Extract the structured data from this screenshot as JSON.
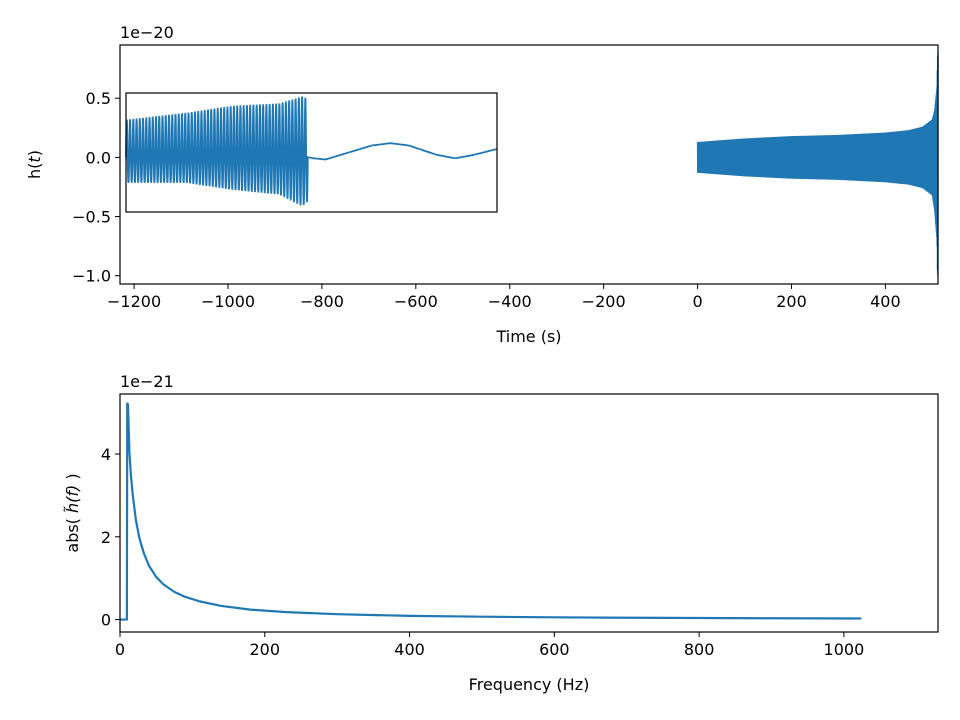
{
  "chart_data": [
    {
      "type": "line",
      "xlabel": "Time (s)",
      "ylabel_prefix": "h(",
      "ylabel_var": "t",
      "ylabel_suffix": ")",
      "y_offset_label": "1e−20",
      "xlim": [
        -1230,
        512
      ],
      "ylim": [
        -1.07,
        0.95
      ],
      "x_ticks": [
        {
          "value": -1200,
          "label": "−1200"
        },
        {
          "value": -1000,
          "label": "−1000"
        },
        {
          "value": -800,
          "label": "−800"
        },
        {
          "value": -600,
          "label": "−600"
        },
        {
          "value": -400,
          "label": "−400"
        },
        {
          "value": -200,
          "label": "−200"
        },
        {
          "value": 0,
          "label": "0"
        },
        {
          "value": 200,
          "label": "200"
        },
        {
          "value": 400,
          "label": "400"
        }
      ],
      "y_ticks": [
        {
          "value": 0.5,
          "label": "0.5"
        },
        {
          "value": 0.0,
          "label": "0.0"
        },
        {
          "value": -0.5,
          "label": "−0.5"
        },
        {
          "value": -1.0,
          "label": "−1.0"
        }
      ],
      "series_color": "#1f77b4",
      "series": [
        {
          "x": [
            0,
            100,
            200,
            300,
            400,
            450,
            480,
            500,
            505,
            510,
            511,
            512
          ],
          "upper": [
            0.13,
            0.16,
            0.18,
            0.19,
            0.21,
            0.23,
            0.26,
            0.32,
            0.4,
            0.6,
            0.85,
            0.88
          ],
          "lower": [
            -0.13,
            -0.16,
            -0.18,
            -0.19,
            -0.21,
            -0.23,
            -0.26,
            -0.32,
            -0.45,
            -0.7,
            -0.98,
            -1.0
          ]
        }
      ],
      "inset": {
        "border_color": "#000000",
        "time_range": [
          -1230,
          -430
        ],
        "value_range": [
          -0.47,
          0.55
        ],
        "merger_time": -838,
        "ringdown_end": -825,
        "oscillation_cycles": 56,
        "envelope": [
          {
            "t": -1230,
            "upper": 0.32,
            "lower": -0.22
          },
          {
            "t": -1100,
            "upper": 0.38,
            "lower": -0.22
          },
          {
            "t": -1000,
            "upper": 0.44,
            "lower": -0.28
          },
          {
            "t": -900,
            "upper": 0.46,
            "lower": -0.32
          },
          {
            "t": -850,
            "upper": 0.52,
            "lower": -0.42
          },
          {
            "t": -838,
            "upper": 0.5,
            "lower": -0.38
          }
        ],
        "tail": [
          {
            "t": -825,
            "v": -0.01
          },
          {
            "t": -800,
            "v": -0.02
          },
          {
            "t": -750,
            "v": 0.04
          },
          {
            "t": -700,
            "v": 0.1
          },
          {
            "t": -660,
            "v": 0.12
          },
          {
            "t": -620,
            "v": 0.1
          },
          {
            "t": -560,
            "v": 0.02
          },
          {
            "t": -520,
            "v": -0.01
          },
          {
            "t": -480,
            "v": 0.02
          },
          {
            "t": -430,
            "v": 0.07
          }
        ]
      }
    },
    {
      "type": "line",
      "xlabel": "Frequency (Hz)",
      "ylabel_prefix": "abs( ",
      "ylabel_var": "h̃(f)",
      "ylabel_suffix": " )",
      "y_offset_label": "1e−21",
      "xlim": [
        0,
        1130
      ],
      "ylim": [
        -0.3,
        5.45
      ],
      "x_ticks": [
        {
          "value": 0,
          "label": "0"
        },
        {
          "value": 200,
          "label": "200"
        },
        {
          "value": 400,
          "label": "400"
        },
        {
          "value": 600,
          "label": "600"
        },
        {
          "value": 800,
          "label": "800"
        },
        {
          "value": 1000,
          "label": "1000"
        }
      ],
      "y_ticks": [
        {
          "value": 0,
          "label": "0"
        },
        {
          "value": 2,
          "label": "2"
        },
        {
          "value": 4,
          "label": "4"
        }
      ],
      "series_color": "#1f77b4",
      "series": [
        {
          "x": [
            0,
            9.5,
            10,
            11,
            13,
            15,
            18,
            22,
            27,
            33,
            40,
            50,
            60,
            75,
            90,
            110,
            140,
            180,
            230,
            300,
            400,
            500,
            600,
            700,
            800,
            900,
            1024
          ],
          "y": [
            0,
            0,
            5.22,
            5.2,
            4.05,
            3.5,
            2.95,
            2.4,
            1.95,
            1.6,
            1.3,
            1.03,
            0.85,
            0.67,
            0.55,
            0.44,
            0.33,
            0.24,
            0.18,
            0.13,
            0.09,
            0.07,
            0.055,
            0.045,
            0.038,
            0.032,
            0.026
          ]
        }
      ]
    }
  ]
}
